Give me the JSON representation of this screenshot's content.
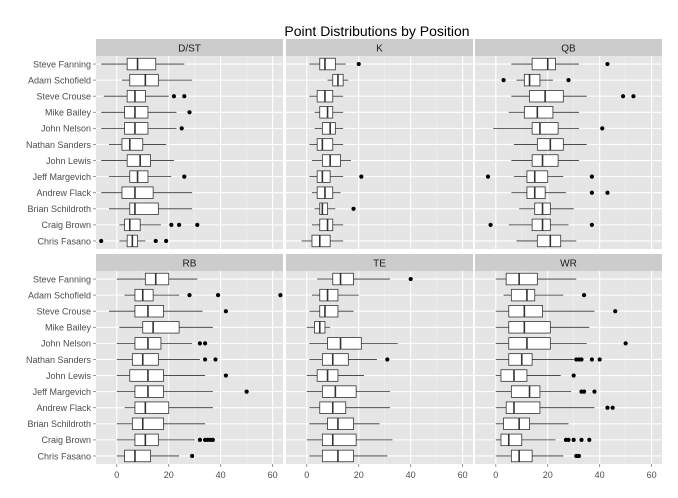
{
  "chart_data": {
    "type": "boxplot",
    "title": "Point Distributions by Position",
    "xlabel": "",
    "ylabel": "",
    "xlim": [
      -8,
      64
    ],
    "x_ticks": [
      0,
      20,
      40,
      60
    ],
    "grid": true,
    "players": [
      "Steve Fanning",
      "Adam Schofield",
      "Steve Crouse",
      "Mike Bailey",
      "John Nelson",
      "Nathan Sanders",
      "John Lewis",
      "Jeff Margevich",
      "Andrew Flack",
      "Brian Schildroth",
      "Craig Brown",
      "Chris Fasano"
    ],
    "panels": [
      {
        "position": "D/ST",
        "boxes": [
          {
            "whisker_low": -6,
            "q1": 4,
            "median": 8,
            "q3": 15,
            "whisker_high": 26,
            "outliers": []
          },
          {
            "whisker_low": 2,
            "q1": 5,
            "median": 11,
            "q3": 16,
            "whisker_high": 29,
            "outliers": []
          },
          {
            "whisker_low": -5,
            "q1": 4,
            "median": 7,
            "q3": 11,
            "whisker_high": 20,
            "outliers": [
              22,
              26
            ]
          },
          {
            "whisker_low": -6,
            "q1": 3,
            "median": 7,
            "q3": 12,
            "whisker_high": 23,
            "outliers": [
              28
            ]
          },
          {
            "whisker_low": -6,
            "q1": 3,
            "median": 7,
            "q3": 12,
            "whisker_high": 23,
            "outliers": [
              25
            ]
          },
          {
            "whisker_low": -3,
            "q1": 2,
            "median": 5,
            "q3": 10,
            "whisker_high": 19,
            "outliers": []
          },
          {
            "whisker_low": -6,
            "q1": 4,
            "median": 9,
            "q3": 13,
            "whisker_high": 22,
            "outliers": []
          },
          {
            "whisker_low": -3,
            "q1": 5,
            "median": 8,
            "q3": 12,
            "whisker_high": 21,
            "outliers": [
              26
            ]
          },
          {
            "whisker_low": -6,
            "q1": 2,
            "median": 7,
            "q3": 14,
            "whisker_high": 29,
            "outliers": []
          },
          {
            "whisker_low": -3,
            "q1": 5,
            "median": 7,
            "q3": 16,
            "whisker_high": 29,
            "outliers": []
          },
          {
            "whisker_low": 1,
            "q1": 3,
            "median": 5,
            "q3": 9,
            "whisker_high": 17,
            "outliers": [
              21,
              24,
              31
            ]
          },
          {
            "whisker_low": 1,
            "q1": 4,
            "median": 6,
            "q3": 8,
            "whisker_high": 11,
            "outliers": [
              -6,
              15,
              19
            ]
          }
        ]
      },
      {
        "position": "K",
        "boxes": [
          {
            "whisker_low": 1,
            "q1": 5,
            "median": 7,
            "q3": 11,
            "whisker_high": 15,
            "outliers": [
              20
            ]
          },
          {
            "whisker_low": 8,
            "q1": 10,
            "median": 12,
            "q3": 14,
            "whisker_high": 16,
            "outliers": []
          },
          {
            "whisker_low": 1,
            "q1": 4,
            "median": 7,
            "q3": 10,
            "whisker_high": 14,
            "outliers": []
          },
          {
            "whisker_low": 3,
            "q1": 5,
            "median": 8,
            "q3": 10,
            "whisker_high": 14,
            "outliers": []
          },
          {
            "whisker_low": 3,
            "q1": 6,
            "median": 9,
            "q3": 11,
            "whisker_high": 14,
            "outliers": []
          },
          {
            "whisker_low": 1,
            "q1": 4,
            "median": 6,
            "q3": 10,
            "whisker_high": 14,
            "outliers": []
          },
          {
            "whisker_low": 2,
            "q1": 6,
            "median": 9,
            "q3": 13,
            "whisker_high": 17,
            "outliers": []
          },
          {
            "whisker_low": 1,
            "q1": 4,
            "median": 6,
            "q3": 9,
            "whisker_high": 14,
            "outliers": [
              21
            ]
          },
          {
            "whisker_low": 2,
            "q1": 4,
            "median": 7,
            "q3": 10,
            "whisker_high": 13,
            "outliers": []
          },
          {
            "whisker_low": 3,
            "q1": 5,
            "median": 6,
            "q3": 8,
            "whisker_high": 11,
            "outliers": [
              18
            ]
          },
          {
            "whisker_low": 2,
            "q1": 5,
            "median": 8,
            "q3": 10,
            "whisker_high": 14,
            "outliers": []
          },
          {
            "whisker_low": -2,
            "q1": 2,
            "median": 5,
            "q3": 9,
            "whisker_high": 14,
            "outliers": []
          }
        ]
      },
      {
        "position": "QB",
        "boxes": [
          {
            "whisker_low": 6,
            "q1": 14,
            "median": 20,
            "q3": 23,
            "whisker_high": 32,
            "outliers": [
              43
            ]
          },
          {
            "whisker_low": 8,
            "q1": 11,
            "median": 13,
            "q3": 17,
            "whisker_high": 22,
            "outliers": [
              3,
              28
            ]
          },
          {
            "whisker_low": 6,
            "q1": 13,
            "median": 19,
            "q3": 26,
            "whisker_high": 35,
            "outliers": [
              49,
              53
            ]
          },
          {
            "whisker_low": 5,
            "q1": 11,
            "median": 16,
            "q3": 22,
            "whisker_high": 32,
            "outliers": []
          },
          {
            "whisker_low": -1,
            "q1": 14,
            "median": 17,
            "q3": 24,
            "whisker_high": 32,
            "outliers": [
              41
            ]
          },
          {
            "whisker_low": 7,
            "q1": 16,
            "median": 21,
            "q3": 26,
            "whisker_high": 35,
            "outliers": []
          },
          {
            "whisker_low": 6,
            "q1": 14,
            "median": 18,
            "q3": 24,
            "whisker_high": 32,
            "outliers": []
          },
          {
            "whisker_low": 7,
            "q1": 12,
            "median": 15,
            "q3": 20,
            "whisker_high": 26,
            "outliers": [
              -3,
              37
            ]
          },
          {
            "whisker_low": 6,
            "q1": 12,
            "median": 15,
            "q3": 19,
            "whisker_high": 27,
            "outliers": [
              37,
              43
            ]
          },
          {
            "whisker_low": 9,
            "q1": 15,
            "median": 18,
            "q3": 21,
            "whisker_high": 30,
            "outliers": []
          },
          {
            "whisker_low": 5,
            "q1": 14,
            "median": 18,
            "q3": 21,
            "whisker_high": 28,
            "outliers": [
              -2,
              37
            ]
          },
          {
            "whisker_low": 8,
            "q1": 16,
            "median": 21,
            "q3": 25,
            "whisker_high": 31,
            "outliers": []
          }
        ]
      },
      {
        "position": "RB",
        "boxes": [
          {
            "whisker_low": 0,
            "q1": 11,
            "median": 15,
            "q3": 20,
            "whisker_high": 31,
            "outliers": []
          },
          {
            "whisker_low": 3,
            "q1": 7,
            "median": 10,
            "q3": 14,
            "whisker_high": 24,
            "outliers": [
              28,
              39,
              63
            ]
          },
          {
            "whisker_low": -3,
            "q1": 7,
            "median": 12,
            "q3": 18,
            "whisker_high": 33,
            "outliers": [
              42
            ]
          },
          {
            "whisker_low": 1,
            "q1": 10,
            "median": 14,
            "q3": 24,
            "whisker_high": 37,
            "outliers": []
          },
          {
            "whisker_low": 0,
            "q1": 7,
            "median": 12,
            "q3": 17,
            "whisker_high": 29,
            "outliers": [
              32,
              34
            ]
          },
          {
            "whisker_low": 0,
            "q1": 6,
            "median": 10,
            "q3": 16,
            "whisker_high": 32,
            "outliers": [
              34,
              38
            ]
          },
          {
            "whisker_low": 0,
            "q1": 5,
            "median": 12,
            "q3": 18,
            "whisker_high": 34,
            "outliers": [
              42
            ]
          },
          {
            "whisker_low": 0,
            "q1": 7,
            "median": 12,
            "q3": 18,
            "whisker_high": 37,
            "outliers": [
              50
            ]
          },
          {
            "whisker_low": 3,
            "q1": 7,
            "median": 11,
            "q3": 20,
            "whisker_high": 37,
            "outliers": []
          },
          {
            "whisker_low": 0,
            "q1": 6,
            "median": 10,
            "q3": 18,
            "whisker_high": 34,
            "outliers": []
          },
          {
            "whisker_low": 0,
            "q1": 7,
            "median": 11,
            "q3": 16,
            "whisker_high": 30,
            "outliers": [
              32,
              34,
              35,
              36,
              37
            ]
          },
          {
            "whisker_low": 0,
            "q1": 3,
            "median": 7,
            "q3": 13,
            "whisker_high": 24,
            "outliers": [
              29
            ]
          }
        ]
      },
      {
        "position": "TE",
        "boxes": [
          {
            "whisker_low": 4,
            "q1": 10,
            "median": 13,
            "q3": 18,
            "whisker_high": 32,
            "outliers": [
              40
            ]
          },
          {
            "whisker_low": 2,
            "q1": 5,
            "median": 8,
            "q3": 12,
            "whisker_high": 20,
            "outliers": []
          },
          {
            "whisker_low": 1,
            "q1": 5,
            "median": 7,
            "q3": 12,
            "whisker_high": 18,
            "outliers": []
          },
          {
            "whisker_low": 0,
            "q1": 3,
            "median": 5,
            "q3": 7,
            "whisker_high": 9,
            "outliers": []
          },
          {
            "whisker_low": 1,
            "q1": 8,
            "median": 13,
            "q3": 21,
            "whisker_high": 35,
            "outliers": []
          },
          {
            "whisker_low": 1,
            "q1": 6,
            "median": 10,
            "q3": 16,
            "whisker_high": 27,
            "outliers": [
              31
            ]
          },
          {
            "whisker_low": 0,
            "q1": 4,
            "median": 8,
            "q3": 12,
            "whisker_high": 22,
            "outliers": []
          },
          {
            "whisker_low": 0,
            "q1": 6,
            "median": 11,
            "q3": 19,
            "whisker_high": 32,
            "outliers": []
          },
          {
            "whisker_low": 1,
            "q1": 5,
            "median": 10,
            "q3": 15,
            "whisker_high": 32,
            "outliers": []
          },
          {
            "whisker_low": 1,
            "q1": 8,
            "median": 12,
            "q3": 18,
            "whisker_high": 28,
            "outliers": []
          },
          {
            "whisker_low": 0,
            "q1": 6,
            "median": 10,
            "q3": 19,
            "whisker_high": 33,
            "outliers": []
          },
          {
            "whisker_low": 1,
            "q1": 6,
            "median": 12,
            "q3": 18,
            "whisker_high": 31,
            "outliers": []
          }
        ]
      },
      {
        "position": "WR",
        "boxes": [
          {
            "whisker_low": 0,
            "q1": 4,
            "median": 9,
            "q3": 16,
            "whisker_high": 31,
            "outliers": []
          },
          {
            "whisker_low": 3,
            "q1": 6,
            "median": 12,
            "q3": 15,
            "whisker_high": 26,
            "outliers": [
              34
            ]
          },
          {
            "whisker_low": 0,
            "q1": 5,
            "median": 11,
            "q3": 18,
            "whisker_high": 38,
            "outliers": [
              46
            ]
          },
          {
            "whisker_low": 0,
            "q1": 5,
            "median": 11,
            "q3": 21,
            "whisker_high": 36,
            "outliers": []
          },
          {
            "whisker_low": 0,
            "q1": 5,
            "median": 12,
            "q3": 21,
            "whisker_high": 35,
            "outliers": [
              50
            ]
          },
          {
            "whisker_low": 0,
            "q1": 5,
            "median": 10,
            "q3": 14,
            "whisker_high": 30,
            "outliers": [
              31,
              32,
              33,
              37,
              40
            ]
          },
          {
            "whisker_low": 0,
            "q1": 2,
            "median": 7,
            "q3": 12,
            "whisker_high": 25,
            "outliers": [
              30
            ]
          },
          {
            "whisker_low": 0,
            "q1": 6,
            "median": 13,
            "q3": 17,
            "whisker_high": 29,
            "outliers": [
              33,
              34,
              38
            ]
          },
          {
            "whisker_low": 0,
            "q1": 4,
            "median": 7,
            "q3": 17,
            "whisker_high": 38,
            "outliers": [
              43,
              45
            ]
          },
          {
            "whisker_low": 0,
            "q1": 3,
            "median": 9,
            "q3": 13,
            "whisker_high": 28,
            "outliers": []
          },
          {
            "whisker_low": 0,
            "q1": 2,
            "median": 5,
            "q3": 10,
            "whisker_high": 23,
            "outliers": [
              27,
              28,
              30,
              33,
              36
            ]
          },
          {
            "whisker_low": 0,
            "q1": 6,
            "median": 9,
            "q3": 14,
            "whisker_high": 26,
            "outliers": [
              31,
              32
            ]
          }
        ]
      }
    ]
  }
}
